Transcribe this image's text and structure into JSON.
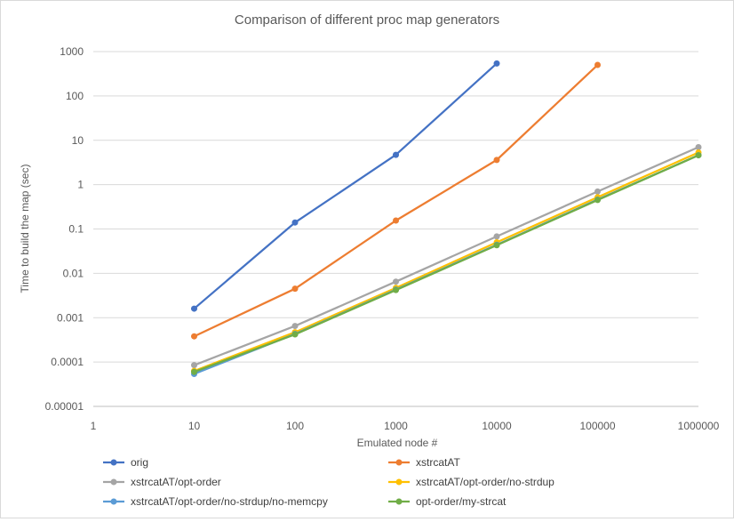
{
  "chart_data": {
    "type": "line",
    "title": "Comparison of different proc map generators",
    "xlabel": "Emulated node #",
    "ylabel": "Time to build the map (sec)",
    "x_scale": "log",
    "y_scale": "log",
    "xlim": [
      1,
      1000000
    ],
    "ylim": [
      1e-05,
      1000
    ],
    "x_ticks": [
      "1",
      "10",
      "100",
      "1000",
      "10000",
      "100000",
      "1000000"
    ],
    "y_ticks": [
      "0.00001",
      "0.0001",
      "0.001",
      "0.01",
      "0.1",
      "1",
      "10",
      "100",
      "1000"
    ],
    "grid": true,
    "legend_position": "bottom",
    "series": [
      {
        "name": "orig",
        "color": "#4472c4",
        "x": [
          10,
          100,
          1000,
          10000
        ],
        "y": [
          0.0016,
          0.14,
          4.7,
          540
        ]
      },
      {
        "name": "xstrcatAT",
        "color": "#ed7d31",
        "x": [
          10,
          100,
          1000,
          10000,
          100000
        ],
        "y": [
          0.00038,
          0.0045,
          0.155,
          3.6,
          500
        ]
      },
      {
        "name": "xstrcatAT/opt-order",
        "color": "#a5a5a5",
        "x": [
          10,
          100,
          1000,
          10000,
          100000,
          1000000
        ],
        "y": [
          8.5e-05,
          0.00065,
          0.0065,
          0.068,
          0.7,
          7.0
        ]
      },
      {
        "name": "xstrcatAT/opt-order/no-strdup",
        "color": "#ffc000",
        "x": [
          10,
          100,
          1000,
          10000,
          100000,
          1000000
        ],
        "y": [
          6.3e-05,
          0.00047,
          0.0047,
          0.05,
          0.52,
          5.3
        ]
      },
      {
        "name": "xstrcatAT/opt-order/no-strdup/no-memcpy",
        "color": "#5b9bd5",
        "x": [
          10,
          100,
          1000,
          10000,
          100000,
          1000000
        ],
        "y": [
          5.4e-05,
          0.00043,
          0.0043,
          0.044,
          0.46,
          4.6
        ]
      },
      {
        "name": "opt-order/my-strcat",
        "color": "#70ad47",
        "x": [
          10,
          100,
          1000,
          10000,
          100000,
          1000000
        ],
        "y": [
          6e-05,
          0.00042,
          0.0042,
          0.043,
          0.45,
          4.6
        ]
      }
    ]
  }
}
